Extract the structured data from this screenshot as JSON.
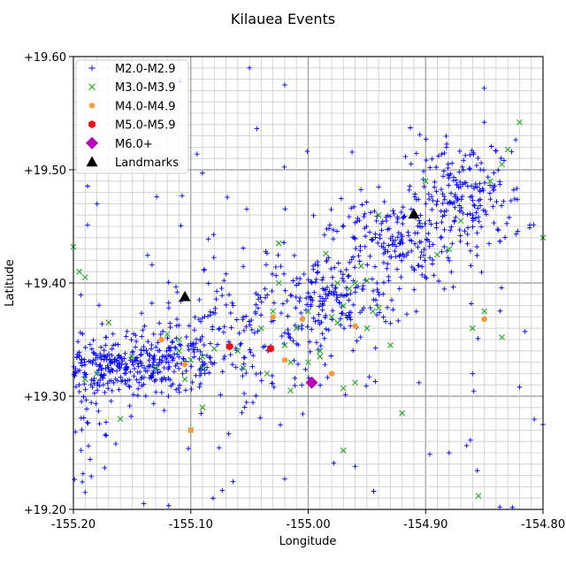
{
  "chart_data": {
    "type": "scatter",
    "title": "Kilauea Events",
    "xlabel": "Longitude",
    "ylabel": "Latitude",
    "xlim": [
      -155.2,
      -154.8
    ],
    "ylim": [
      19.2,
      19.6
    ],
    "grid": {
      "major": true,
      "minor": true
    },
    "legend_placement": "top-left",
    "xticks": [
      "-155.20",
      "-155.10",
      "-155.00",
      "-154.90",
      "-154.80"
    ],
    "yticks": [
      "+19.20",
      "+19.30",
      "+19.40",
      "+19.50",
      "+19.60"
    ],
    "series": [
      {
        "name": "M2.0-M2.9",
        "marker": "plus",
        "color": "#0000ff",
        "clusters": [
          {
            "center": [
              -155.17,
              19.325
            ],
            "spread": [
              0.035,
              0.012
            ],
            "count": 260
          },
          {
            "center": [
              -155.12,
              19.333
            ],
            "spread": [
              0.03,
              0.015
            ],
            "count": 130
          },
          {
            "center": [
              -155.05,
              19.355
            ],
            "spread": [
              0.045,
              0.025
            ],
            "count": 150
          },
          {
            "center": [
              -154.98,
              19.385
            ],
            "spread": [
              0.03,
              0.02
            ],
            "count": 160
          },
          {
            "center": [
              -154.93,
              19.44
            ],
            "spread": [
              0.025,
              0.018
            ],
            "count": 170
          },
          {
            "center": [
              -154.865,
              19.475
            ],
            "spread": [
              0.025,
              0.025
            ],
            "count": 200
          },
          {
            "center": [
              -155.19,
              19.29
            ],
            "spread": [
              0.01,
              0.03
            ],
            "count": 40
          },
          {
            "center": [
              -155.0,
              19.35
            ],
            "spread": [
              0.18,
              0.12
            ],
            "count": 190
          }
        ],
        "points": [
          [
            -155.02,
            19.575
          ],
          [
            -154.85,
            19.572
          ],
          [
            -155.19,
            19.215
          ],
          [
            -155.14,
            19.205
          ],
          [
            -155.02,
            19.227
          ],
          [
            -154.82,
            19.308
          ],
          [
            -154.8,
            19.275
          ],
          [
            -154.86,
            19.32
          ],
          [
            -154.88,
            19.25
          ],
          [
            -155.05,
            19.59
          ],
          [
            -154.85,
            19.542
          ],
          [
            -154.96,
            19.238
          ]
        ]
      },
      {
        "name": "M3.0-M3.9",
        "marker": "x",
        "color": "#22aa22",
        "points": [
          [
            -154.82,
            19.542
          ],
          [
            -154.83,
            19.518
          ],
          [
            -154.835,
            19.505
          ],
          [
            -154.8,
            19.44
          ],
          [
            -155.2,
            19.432
          ],
          [
            -155.19,
            19.405
          ],
          [
            -155.17,
            19.365
          ],
          [
            -155.12,
            19.355
          ],
          [
            -155.11,
            19.34
          ],
          [
            -155.1,
            19.332
          ],
          [
            -155.09,
            19.335
          ],
          [
            -155.15,
            19.335
          ],
          [
            -155.18,
            19.32
          ],
          [
            -155.19,
            19.315
          ],
          [
            -155.13,
            19.325
          ],
          [
            -155.08,
            19.342
          ],
          [
            -155.03,
            19.375
          ],
          [
            -155.025,
            19.4
          ],
          [
            -155.025,
            19.435
          ],
          [
            -155.02,
            19.345
          ],
          [
            -155.015,
            19.33
          ],
          [
            -155.01,
            19.36
          ],
          [
            -155.0,
            19.375
          ],
          [
            -154.99,
            19.34
          ],
          [
            -154.985,
            19.426
          ],
          [
            -154.975,
            19.4
          ],
          [
            -154.97,
            19.38
          ],
          [
            -154.965,
            19.395
          ],
          [
            -154.96,
            19.4
          ],
          [
            -154.955,
            19.415
          ],
          [
            -154.95,
            19.36
          ],
          [
            -154.945,
            19.375
          ],
          [
            -154.94,
            19.46
          ],
          [
            -154.93,
            19.345
          ],
          [
            -154.92,
            19.285
          ],
          [
            -154.9,
            19.49
          ],
          [
            -154.89,
            19.425
          ],
          [
            -154.87,
            19.455
          ],
          [
            -154.86,
            19.36
          ],
          [
            -154.85,
            19.375
          ],
          [
            -154.845,
            19.49
          ],
          [
            -154.835,
            19.352
          ],
          [
            -154.855,
            19.212
          ],
          [
            -155.09,
            19.29
          ],
          [
            -155.1,
            19.27
          ],
          [
            -155.015,
            19.305
          ],
          [
            -154.97,
            19.307
          ],
          [
            -154.96,
            19.312
          ],
          [
            -154.97,
            19.252
          ],
          [
            -155.0,
            19.33
          ],
          [
            -155.06,
            19.34
          ],
          [
            -155.055,
            19.325
          ],
          [
            -155.04,
            19.36
          ],
          [
            -155.035,
            19.32
          ],
          [
            -155.16,
            19.28
          ],
          [
            -155.195,
            19.41
          ],
          [
            -154.98,
            19.37
          ],
          [
            -154.975,
            19.365
          ],
          [
            -154.95,
            19.402
          ],
          [
            -154.94,
            19.378
          ],
          [
            -155.11,
            19.35
          ],
          [
            -155.105,
            19.315
          ],
          [
            -155.09,
            19.325
          ],
          [
            -154.99,
            19.335
          ],
          [
            -154.88,
            19.43
          ]
        ]
      },
      {
        "name": "M4.0-M4.9",
        "marker": "circle",
        "color": "#ff9933",
        "points": [
          [
            -155.125,
            19.35
          ],
          [
            -155.105,
            19.328
          ],
          [
            -155.1,
            19.27
          ],
          [
            -155.03,
            19.37
          ],
          [
            -155.02,
            19.332
          ],
          [
            -155.005,
            19.368
          ],
          [
            -154.98,
            19.32
          ],
          [
            -154.96,
            19.362
          ],
          [
            -154.85,
            19.368
          ]
        ]
      },
      {
        "name": "M5.0-M5.9",
        "marker": "hexagon",
        "color": "#ee1111",
        "points": [
          [
            -155.067,
            19.344
          ],
          [
            -155.032,
            19.342
          ]
        ]
      },
      {
        "name": "M6.0+",
        "marker": "diamond",
        "color": "#bb00bb",
        "points": [
          [
            -154.997,
            19.312
          ]
        ]
      },
      {
        "name": "Landmarks",
        "marker": "triangle",
        "color": "#000000",
        "points": [
          [
            -155.105,
            19.388
          ],
          [
            -154.91,
            19.461
          ]
        ]
      }
    ]
  }
}
